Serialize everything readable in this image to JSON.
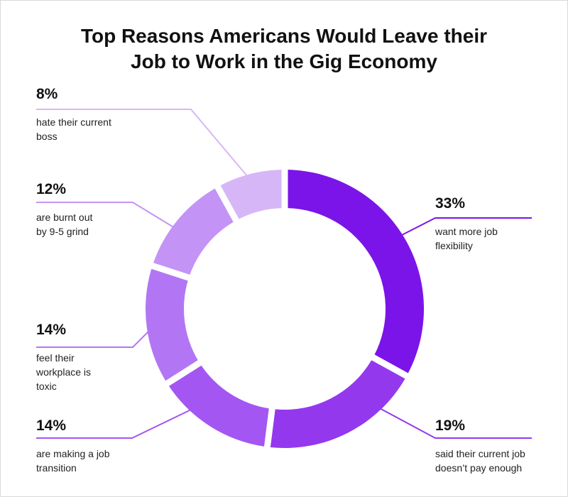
{
  "title_lines": [
    "Top Reasons Americans Would Leave their",
    "Job to Work in the Gig Economy"
  ],
  "chart_data": {
    "type": "pie",
    "title": "Top Reasons Americans Would Leave their Job to Work in the Gig Economy",
    "unit": "%",
    "legend": "none",
    "slices": [
      {
        "value": 33,
        "label": "33%",
        "description": [
          "want more job",
          "flexibility"
        ],
        "color": "#7B14E8"
      },
      {
        "value": 19,
        "label": "19%",
        "description": [
          "said their current job",
          "doesn’t pay enough"
        ],
        "color": "#9438EE"
      },
      {
        "value": 14,
        "label": "14%",
        "description": [
          "are making a job",
          "transition"
        ],
        "color": "#A456F2"
      },
      {
        "value": 14,
        "label": "14%",
        "description": [
          "feel their",
          "workplace is",
          "toxic"
        ],
        "color": "#B276F4"
      },
      {
        "value": 12,
        "label": "12%",
        "description": [
          "are burnt out",
          "by 9-5 grind"
        ],
        "color": "#C493F6"
      },
      {
        "value": 8,
        "label": "8%",
        "description": [
          "hate their current",
          "boss"
        ],
        "color": "#D7B6F8"
      }
    ]
  }
}
